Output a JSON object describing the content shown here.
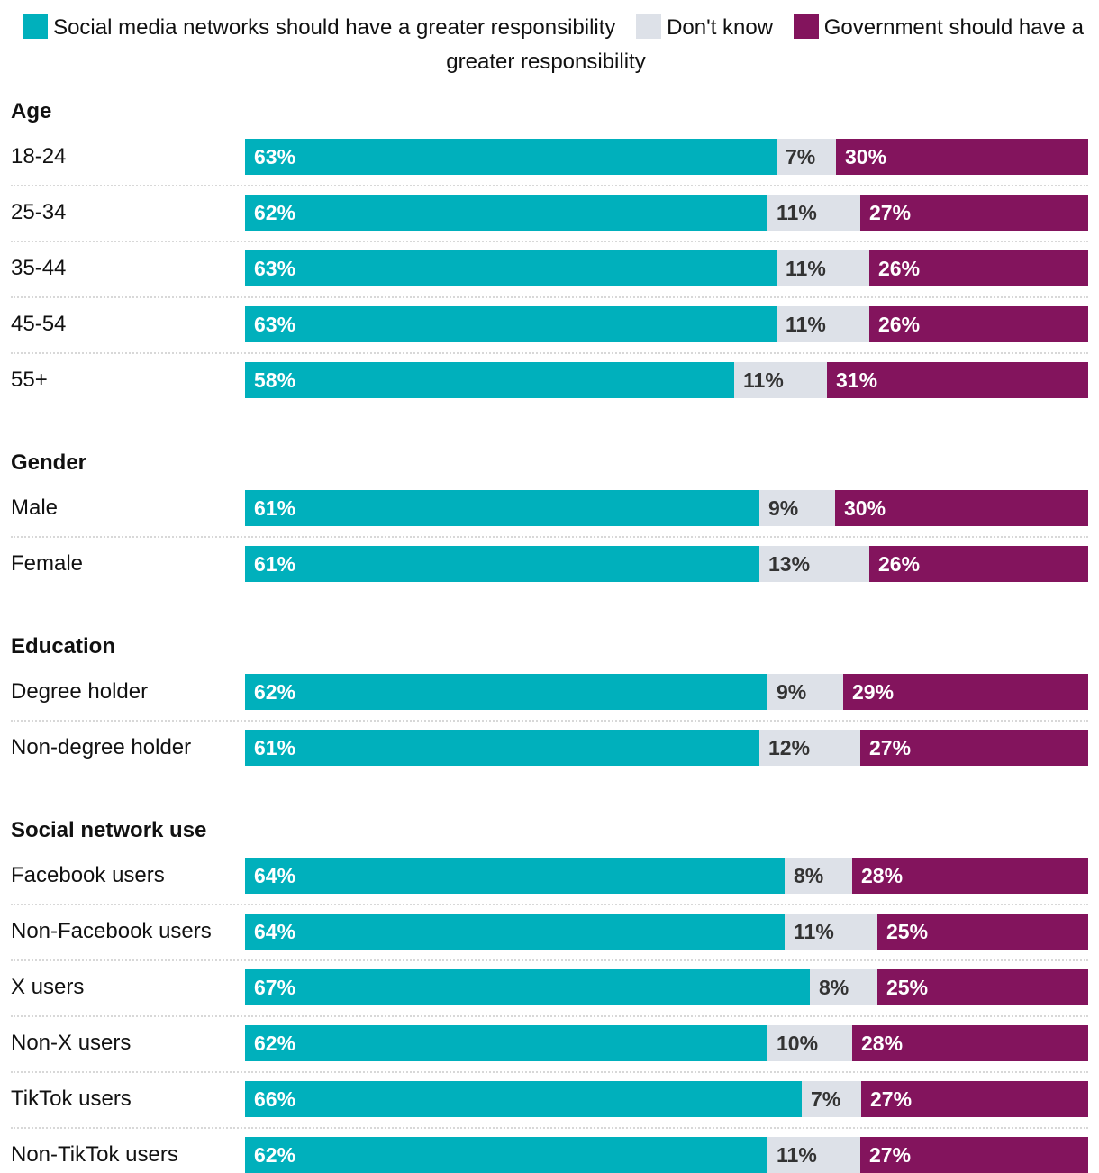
{
  "colors": {
    "social": "#00b0bc",
    "dontknow": "#dde1e8",
    "government": "#83145d",
    "label_on_dark": "#ffffff",
    "label_on_light": "#333333"
  },
  "legend": [
    {
      "key": "social",
      "label": "Social media networks should have a greater responsibility"
    },
    {
      "key": "dontknow",
      "label": "Don't know"
    },
    {
      "key": "government",
      "label": "Government should have a greater responsibility"
    }
  ],
  "chart_data": {
    "type": "bar",
    "orientation": "horizontal",
    "stacked": true,
    "title": "",
    "xlabel": "",
    "ylabel": "",
    "xlim": [
      0,
      100
    ],
    "legend_position": "top",
    "series": [
      {
        "key": "social",
        "name": "Social media networks should have a greater responsibility"
      },
      {
        "key": "dontknow",
        "name": "Don't know"
      },
      {
        "key": "government",
        "name": "Government should have a greater responsibility"
      }
    ],
    "groups": [
      {
        "title": "Age",
        "rows": [
          {
            "label": "18-24",
            "values": [
              63,
              7,
              30
            ]
          },
          {
            "label": "25-34",
            "values": [
              62,
              11,
              27
            ]
          },
          {
            "label": "35-44",
            "values": [
              63,
              11,
              26
            ]
          },
          {
            "label": "45-54",
            "values": [
              63,
              11,
              26
            ]
          },
          {
            "label": "55+",
            "values": [
              58,
              11,
              31
            ]
          }
        ]
      },
      {
        "title": "Gender",
        "rows": [
          {
            "label": "Male",
            "values": [
              61,
              9,
              30
            ]
          },
          {
            "label": "Female",
            "values": [
              61,
              13,
              26
            ]
          }
        ]
      },
      {
        "title": "Education",
        "rows": [
          {
            "label": "Degree holder",
            "values": [
              62,
              9,
              29
            ]
          },
          {
            "label": "Non-degree holder",
            "values": [
              61,
              12,
              27
            ]
          }
        ]
      },
      {
        "title": "Social network use",
        "rows": [
          {
            "label": "Facebook users",
            "values": [
              64,
              8,
              28
            ]
          },
          {
            "label": "Non-Facebook users",
            "values": [
              64,
              11,
              25
            ]
          },
          {
            "label": "X users",
            "values": [
              67,
              8,
              25
            ]
          },
          {
            "label": "Non-X users",
            "values": [
              62,
              10,
              28
            ]
          },
          {
            "label": "TikTok users",
            "values": [
              66,
              7,
              27
            ]
          },
          {
            "label": "Non-TikTok users",
            "values": [
              62,
              11,
              27
            ]
          }
        ]
      }
    ]
  }
}
